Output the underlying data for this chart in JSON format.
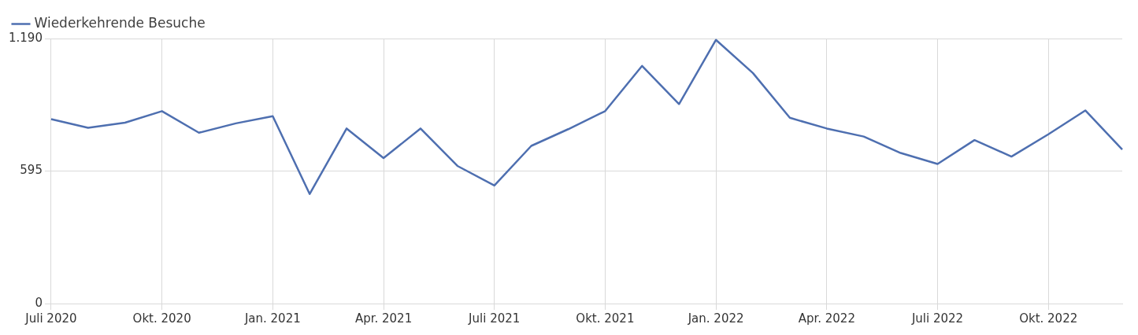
{
  "chart_data": {
    "type": "line",
    "categories": [
      "Juli 2020",
      null,
      null,
      "Okt. 2020",
      null,
      null,
      "Jan. 2021",
      null,
      null,
      "Apr. 2021",
      null,
      null,
      "Juli 2021",
      null,
      null,
      "Okt. 2021",
      null,
      null,
      "Jan. 2022",
      null,
      null,
      "Apr. 2022",
      null,
      null,
      "Juli 2022",
      null,
      null,
      "Okt. 2022",
      null,
      null
    ],
    "series": [
      {
        "name": "Wiederkehrende Besuche",
        "color": "#4e6fb0",
        "values": [
          828,
          789,
          812,
          864,
          767,
          809,
          841,
          492,
          786,
          653,
          786,
          618,
          530,
          708,
          783,
          864,
          1067,
          896,
          1184,
          1035,
          834,
          786,
          750,
          676,
          627,
          734,
          660,
          760,
          867,
          692
        ]
      }
    ],
    "ylim": [
      0,
      1190
    ],
    "yticks": [
      0,
      595,
      {
        "value": 1190,
        "label": "1.190"
      }
    ],
    "grid": true,
    "legend": "top left",
    "marker": "none",
    "line_style": "solid"
  }
}
